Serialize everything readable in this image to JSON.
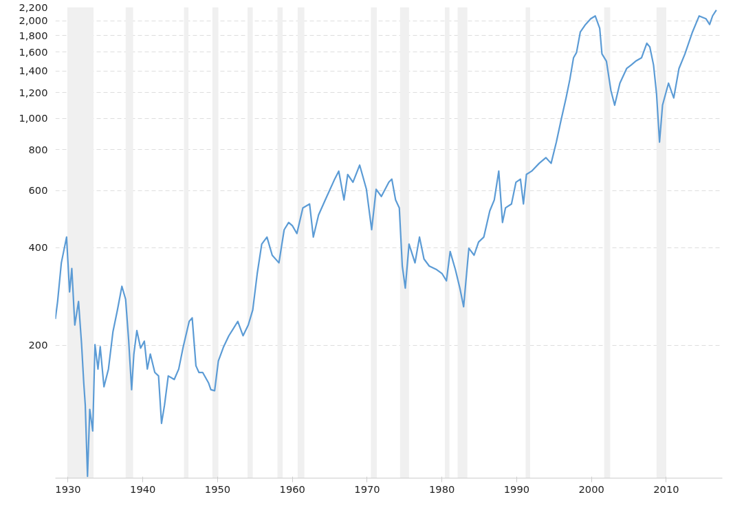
{
  "chart_data": {
    "type": "line",
    "log": "y",
    "grid": "y",
    "xlim": [
      1928.3,
      2017.5
    ],
    "ylim": [
      78,
      2200
    ],
    "xticks": [
      1930,
      1940,
      1950,
      1960,
      1970,
      1980,
      1990,
      2000,
      2010
    ],
    "yticks": [
      200,
      400,
      600,
      800,
      {
        "value": 1000,
        "label": "1,000"
      },
      {
        "value": 1200,
        "label": "1,200"
      },
      {
        "value": 1400,
        "label": "1,400"
      },
      {
        "value": 1600,
        "label": "1,600"
      },
      {
        "value": 1800,
        "label": "1,800"
      },
      {
        "value": 2000,
        "label": "2,000"
      },
      {
        "value": 2200,
        "label": "2,200"
      }
    ],
    "bands": [
      {
        "axis": "x",
        "from": 1929.9,
        "to": 1933.4,
        "color": "#f0f0f0"
      },
      {
        "axis": "x",
        "from": 1937.7,
        "to": 1938.7,
        "color": "#f0f0f0"
      },
      {
        "axis": "x",
        "from": 1945.5,
        "to": 1946.1,
        "color": "#f0f0f0"
      },
      {
        "axis": "x",
        "from": 1949.3,
        "to": 1950.1,
        "color": "#f0f0f0"
      },
      {
        "axis": "x",
        "from": 1954.0,
        "to": 1954.7,
        "color": "#f0f0f0"
      },
      {
        "axis": "x",
        "from": 1958.0,
        "to": 1958.7,
        "color": "#f0f0f0"
      },
      {
        "axis": "x",
        "from": 1960.7,
        "to": 1961.6,
        "color": "#f0f0f0"
      },
      {
        "axis": "x",
        "from": 1970.5,
        "to": 1971.3,
        "color": "#f0f0f0"
      },
      {
        "axis": "x",
        "from": 1974.4,
        "to": 1975.6,
        "color": "#f0f0f0"
      },
      {
        "axis": "x",
        "from": 1980.4,
        "to": 1981.0,
        "color": "#f0f0f0"
      },
      {
        "axis": "x",
        "from": 1982.1,
        "to": 1983.4,
        "color": "#f0f0f0"
      },
      {
        "axis": "x",
        "from": 1991.2,
        "to": 1991.8,
        "color": "#f0f0f0"
      },
      {
        "axis": "x",
        "from": 2001.7,
        "to": 2002.5,
        "color": "#f0f0f0"
      },
      {
        "axis": "x",
        "from": 2008.7,
        "to": 2010.0,
        "color": "#f0f0f0"
      }
    ],
    "x": [
      1928.3,
      1928.6,
      1929.1,
      1929.8,
      1930.2,
      1930.5,
      1930.9,
      1931.4,
      1931.8,
      1932.1,
      1932.3,
      1932.6,
      1932.9,
      1933.3,
      1933.6,
      1934.0,
      1934.3,
      1934.8,
      1935.4,
      1936.0,
      1936.6,
      1937.2,
      1937.7,
      1938.1,
      1938.5,
      1938.8,
      1939.2,
      1939.7,
      1940.2,
      1940.6,
      1941.0,
      1941.6,
      1942.1,
      1942.5,
      1942.9,
      1943.4,
      1944.2,
      1944.8,
      1945.4,
      1946.2,
      1946.6,
      1947.1,
      1947.5,
      1948.0,
      1948.8,
      1949.1,
      1949.6,
      1950.1,
      1950.8,
      1951.5,
      1952.1,
      1952.7,
      1953.4,
      1954.1,
      1954.7,
      1955.3,
      1955.9,
      1956.6,
      1957.3,
      1958.2,
      1958.9,
      1959.5,
      1960.0,
      1960.6,
      1961.4,
      1962.3,
      1962.8,
      1963.5,
      1964.4,
      1965.6,
      1966.2,
      1966.9,
      1967.4,
      1968.1,
      1969.0,
      1969.9,
      1970.6,
      1971.2,
      1971.9,
      1972.9,
      1973.3,
      1973.8,
      1974.3,
      1974.7,
      1975.1,
      1975.6,
      1976.4,
      1977.0,
      1977.6,
      1978.3,
      1979.3,
      1980.0,
      1980.6,
      1981.1,
      1981.8,
      1982.4,
      1982.9,
      1983.6,
      1984.3,
      1984.9,
      1985.6,
      1986.4,
      1987.0,
      1987.6,
      1988.1,
      1988.5,
      1989.3,
      1989.9,
      1990.5,
      1990.9,
      1991.3,
      1992.0,
      1993.0,
      1993.9,
      1994.6,
      1995.3,
      1995.9,
      1996.6,
      1997.1,
      1997.6,
      1998.0,
      1998.5,
      1999.2,
      1999.9,
      2000.5,
      2001.1,
      2001.4,
      2002.0,
      2002.6,
      2003.1,
      2003.8,
      2004.7,
      2005.3,
      2005.9,
      2006.7,
      2007.4,
      2007.8,
      2008.3,
      2008.7,
      2009.1,
      2009.5,
      2010.3,
      2011.0,
      2011.7,
      2012.5,
      2013.5,
      2014.4,
      2015.3,
      2015.8,
      2016.2,
      2016.7
    ],
    "series": [
      {
        "color": "#5b9bd5",
        "values": [
          241,
          273,
          359,
          431,
          292,
          345,
          231,
          273,
          203,
          153,
          131,
          79,
          127,
          109,
          201,
          169,
          198,
          149,
          169,
          220,
          257,
          304,
          277,
          208,
          146,
          188,
          222,
          196,
          206,
          169,
          188,
          165,
          161,
          115,
          131,
          161,
          157,
          169,
          198,
          237,
          243,
          173,
          165,
          165,
          153,
          146,
          145,
          179,
          198,
          214,
          225,
          237,
          214,
          231,
          257,
          333,
          410,
          431,
          379,
          359,
          454,
          478,
          467,
          442,
          530,
          545,
          431,
          504,
          561,
          646,
          688,
          561,
          672,
          636,
          718,
          605,
          454,
          605,
          575,
          636,
          650,
          561,
          530,
          351,
          300,
          410,
          359,
          431,
          369,
          351,
          342,
          333,
          316,
          389,
          342,
          300,
          263,
          398,
          379,
          416,
          431,
          519,
          561,
          688,
          478,
          530,
          545,
          636,
          650,
          545,
          672,
          688,
          727,
          757,
          727,
          845,
          981,
          1156,
          1316,
          1538,
          1596,
          1844,
          1946,
          2028,
          2068,
          1896,
          1580,
          1500,
          1218,
          1098,
          1284,
          1424,
          1460,
          1500,
          1538,
          1704,
          1660,
          1460,
          1190,
          845,
          1098,
          1284,
          1156,
          1424,
          1580,
          1844,
          2068,
          2028,
          1946,
          2070,
          2156
        ]
      }
    ]
  }
}
